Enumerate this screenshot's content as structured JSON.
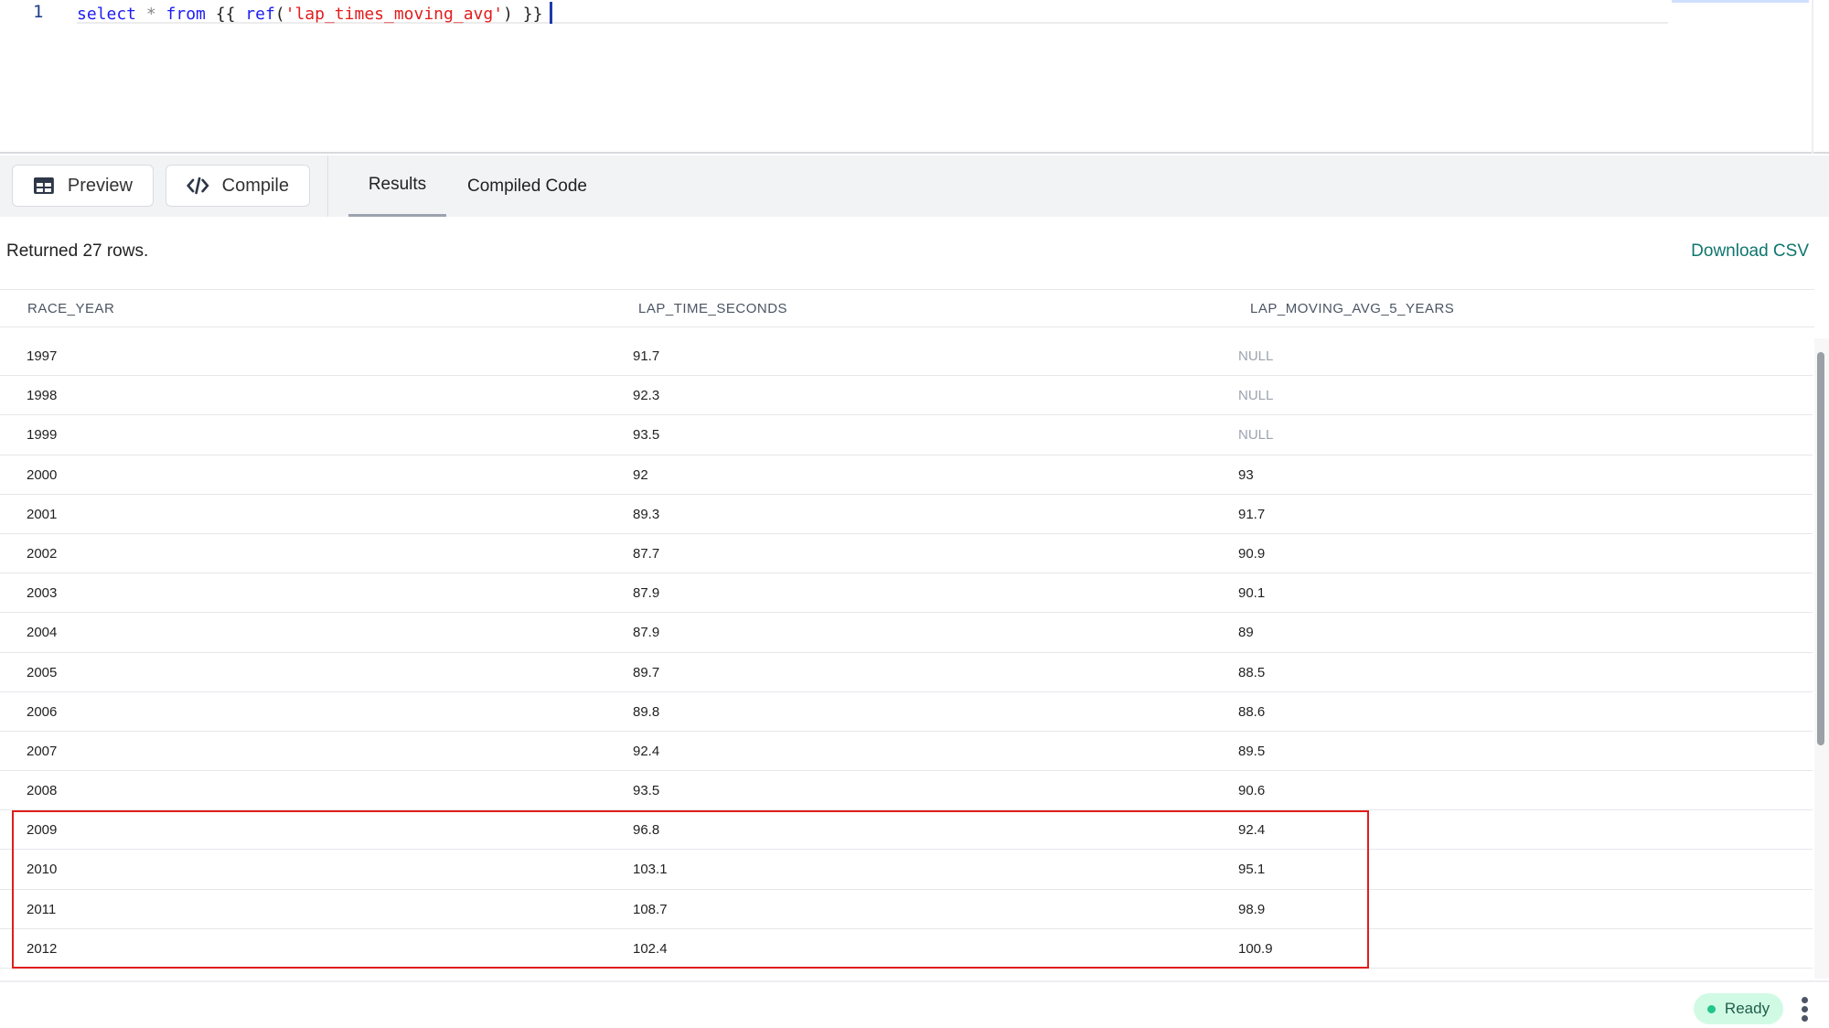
{
  "editor": {
    "line_number": "1",
    "code": {
      "kw1": "select",
      "op": " * ",
      "kw2": "from",
      "open": " {{ ",
      "fn": "ref",
      "paren_open": "(",
      "str": "'lap_times_moving_avg'",
      "paren_close": ")",
      "close": " }}"
    }
  },
  "toolbar": {
    "preview_label": "Preview",
    "compile_label": "Compile",
    "tabs": [
      {
        "label": "Results",
        "active": true
      },
      {
        "label": "Compiled Code",
        "active": false
      }
    ]
  },
  "results": {
    "status": "Returned 27 rows.",
    "download_label": "Download CSV",
    "columns": [
      "RACE_YEAR",
      "LAP_TIME_SECONDS",
      "LAP_MOVING_AVG_5_YEARS"
    ],
    "rows": [
      [
        "1997",
        "91.7",
        "NULL"
      ],
      [
        "1998",
        "92.3",
        "NULL"
      ],
      [
        "1999",
        "93.5",
        "NULL"
      ],
      [
        "2000",
        "92",
        "93"
      ],
      [
        "2001",
        "89.3",
        "91.7"
      ],
      [
        "2002",
        "87.7",
        "90.9"
      ],
      [
        "2003",
        "87.9",
        "90.1"
      ],
      [
        "2004",
        "87.9",
        "89"
      ],
      [
        "2005",
        "89.7",
        "88.5"
      ],
      [
        "2006",
        "89.8",
        "88.6"
      ],
      [
        "2007",
        "92.4",
        "89.5"
      ],
      [
        "2008",
        "93.5",
        "90.6"
      ],
      [
        "2009",
        "96.8",
        "92.4"
      ],
      [
        "2010",
        "103.1",
        "95.1"
      ],
      [
        "2011",
        "108.7",
        "98.9"
      ],
      [
        "2012",
        "102.4",
        "100.9"
      ]
    ],
    "highlighted_years": [
      "2009",
      "2010",
      "2011",
      "2012"
    ],
    "highlight_color": "#e11d1d"
  },
  "footer": {
    "status": "Ready",
    "status_color": "#22c58b"
  }
}
